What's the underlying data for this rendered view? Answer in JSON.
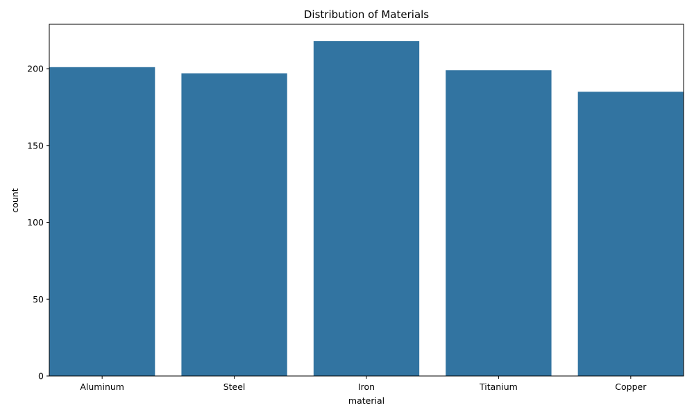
{
  "chart_data": {
    "type": "bar",
    "title": "Distribution of Materials",
    "xlabel": "material",
    "ylabel": "count",
    "categories": [
      "Aluminum",
      "Steel",
      "Iron",
      "Titanium",
      "Copper"
    ],
    "values": [
      201,
      197,
      218,
      199,
      185
    ],
    "ylim": [
      0,
      228.9
    ],
    "yticks": [
      0,
      50,
      100,
      150,
      200
    ],
    "grid": false,
    "legend": "none",
    "bar_color": "#3274a1"
  }
}
